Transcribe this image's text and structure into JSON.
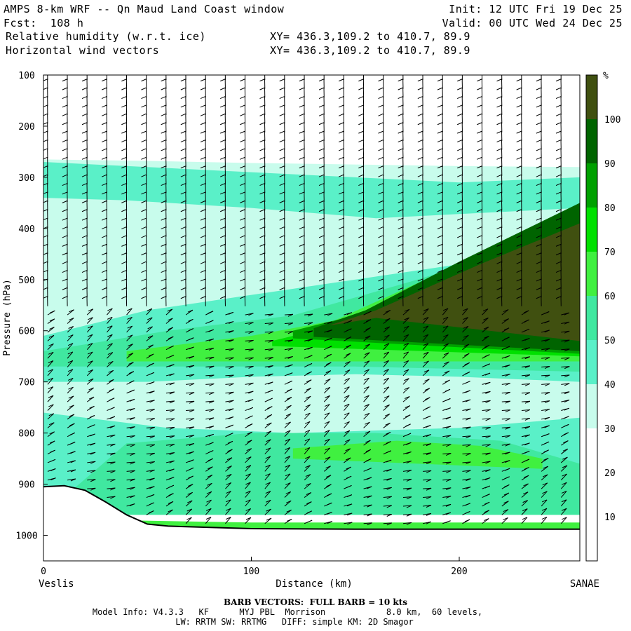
{
  "header": {
    "title": "AMPS 8-km WRF -- Qn Maud Land Coast window",
    "forecast": "Fcst:  108 h",
    "init": "Init: 12 UTC Fri 19 Dec 25",
    "valid": "Valid: 00 UTC Wed 24 Dec 25",
    "field1": "Relative humidity (w.r.t. ice)",
    "field1_xy": "XY= 436.3,109.2 to 410.7, 89.9",
    "field2": "Horizontal wind vectors",
    "field2_xy": "XY= 436.3,109.2 to 410.7, 89.9"
  },
  "chart_data": {
    "type": "heatmap",
    "title": "Relative humidity (w.r.t. ice)",
    "xlabel": "Distance (km)",
    "ylabel": "Pressure (hPa)",
    "xlim": [
      0,
      258
    ],
    "ylim": [
      1050,
      100
    ],
    "x_ticks": [
      0,
      100,
      200
    ],
    "y_ticks": [
      100,
      200,
      300,
      400,
      500,
      600,
      700,
      800,
      900,
      1000
    ],
    "left_endpoint": "Veslis",
    "right_endpoint": "SANAE",
    "colorbar": {
      "unit": "%",
      "levels": [
        10,
        20,
        30,
        40,
        50,
        60,
        70,
        80,
        90,
        100
      ],
      "colors": [
        "#ffffff",
        "#ffffff",
        "#ffffff",
        "#c8fcec",
        "#5af0c8",
        "#40e8a0",
        "#40f040",
        "#00e000",
        "#00a000",
        "#006400",
        "#405010"
      ]
    },
    "layers": [
      {
        "name": "30-40",
        "color": "#c8fcec",
        "top": [
          [
            0,
            265
          ],
          [
            50,
            268
          ],
          [
            100,
            272
          ],
          [
            150,
            275
          ],
          [
            200,
            278
          ],
          [
            258,
            280
          ]
        ],
        "bottom": [
          [
            0,
            905
          ],
          [
            258,
            905
          ]
        ]
      },
      {
        "name": "40-50",
        "color": "#5af0c8",
        "top": [
          [
            0,
            270
          ],
          [
            50,
            280
          ],
          [
            100,
            290
          ],
          [
            150,
            300
          ],
          [
            200,
            310
          ],
          [
            258,
            300
          ]
        ],
        "bottom": [
          [
            0,
            340
          ],
          [
            40,
            345
          ],
          [
            100,
            360
          ],
          [
            160,
            380
          ],
          [
            258,
            360
          ]
        ]
      },
      {
        "name": "40-50 mid",
        "color": "#5af0c8",
        "top": [
          [
            0,
            610
          ],
          [
            50,
            560
          ],
          [
            100,
            530
          ],
          [
            150,
            500
          ],
          [
            200,
            470
          ],
          [
            258,
            440
          ]
        ],
        "bottom": [
          [
            0,
            700
          ],
          [
            50,
            700
          ],
          [
            100,
            690
          ],
          [
            150,
            685
          ],
          [
            200,
            690
          ],
          [
            258,
            700
          ]
        ]
      },
      {
        "name": "50-60",
        "color": "#40e8a0",
        "top": [
          [
            0,
            640
          ],
          [
            60,
            600
          ],
          [
            120,
            570
          ],
          [
            180,
            500
          ],
          [
            258,
            400
          ]
        ],
        "bottom": [
          [
            0,
            670
          ],
          [
            80,
            670
          ],
          [
            150,
            670
          ],
          [
            258,
            680
          ]
        ]
      },
      {
        "name": "60-70",
        "color": "#40f040",
        "top": [
          [
            40,
            640
          ],
          [
            100,
            610
          ],
          [
            140,
            580
          ],
          [
            200,
            470
          ],
          [
            258,
            380
          ]
        ],
        "bottom": [
          [
            40,
            660
          ],
          [
            140,
            660
          ],
          [
            258,
            660
          ]
        ]
      },
      {
        "name": "70-80",
        "color": "#00e000",
        "top": [
          [
            110,
            620
          ],
          [
            140,
            590
          ],
          [
            200,
            480
          ],
          [
            258,
            370
          ]
        ],
        "bottom": [
          [
            110,
            630
          ],
          [
            258,
            650
          ]
        ]
      },
      {
        "name": "80-90",
        "color": "#00a000",
        "top": [
          [
            120,
            600
          ],
          [
            150,
            570
          ],
          [
            200,
            470
          ],
          [
            258,
            355
          ]
        ],
        "bottom": [
          [
            120,
            615
          ],
          [
            258,
            645
          ]
        ]
      },
      {
        "name": "90-100",
        "color": "#006400",
        "top": [
          [
            130,
            595
          ],
          [
            155,
            560
          ],
          [
            200,
            465
          ],
          [
            258,
            350
          ]
        ],
        "bottom": [
          [
            130,
            612
          ],
          [
            258,
            640
          ]
        ]
      },
      {
        "name": "100+",
        "color": "#405010",
        "top": [
          [
            137,
            590
          ],
          [
            160,
            560
          ],
          [
            210,
            470
          ],
          [
            258,
            390
          ]
        ],
        "bottom": [
          [
            160,
            575
          ],
          [
            258,
            620
          ]
        ]
      },
      {
        "name": "low 40-50",
        "color": "#5af0c8",
        "top": [
          [
            0,
            760
          ],
          [
            60,
            790
          ],
          [
            120,
            800
          ],
          [
            200,
            790
          ],
          [
            258,
            770
          ]
        ],
        "bottom": [
          [
            0,
            950
          ],
          [
            258,
            950
          ]
        ]
      },
      {
        "name": "low 50-60",
        "color": "#40e8a0",
        "top": [
          [
            40,
            820
          ],
          [
            100,
            800
          ],
          [
            160,
            800
          ],
          [
            220,
            815
          ],
          [
            258,
            860
          ]
        ],
        "bottom": [
          [
            0,
            960
          ],
          [
            258,
            960
          ]
        ]
      },
      {
        "name": "low 60-70",
        "color": "#40f040",
        "top": [
          [
            120,
            830
          ],
          [
            170,
            815
          ],
          [
            210,
            825
          ],
          [
            240,
            850
          ]
        ],
        "bottom": [
          [
            120,
            850
          ],
          [
            240,
            870
          ]
        ]
      },
      {
        "name": "surface 60-70",
        "color": "#40f040",
        "top": [
          [
            30,
            970
          ],
          [
            100,
            975
          ],
          [
            258,
            975
          ]
        ],
        "bottom": [
          [
            30,
            990
          ],
          [
            258,
            990
          ]
        ]
      }
    ],
    "terrain": [
      [
        0,
        905
      ],
      [
        10,
        903
      ],
      [
        20,
        912
      ],
      [
        30,
        935
      ],
      [
        40,
        960
      ],
      [
        50,
        978
      ],
      [
        60,
        982
      ],
      [
        100,
        987
      ],
      [
        150,
        988
      ],
      [
        200,
        988
      ],
      [
        258,
        988
      ]
    ]
  },
  "footer": {
    "barb": "BARB VECTORS:  FULL BARB = 10 kts",
    "model1": "Model Info: V4.3.3   KF      MYJ PBL  Morrison            8.0 km,  60 levels,",
    "model2": "LW: RRTM SW: RRTMG   DIFF: simple KM: 2D Smagor"
  }
}
